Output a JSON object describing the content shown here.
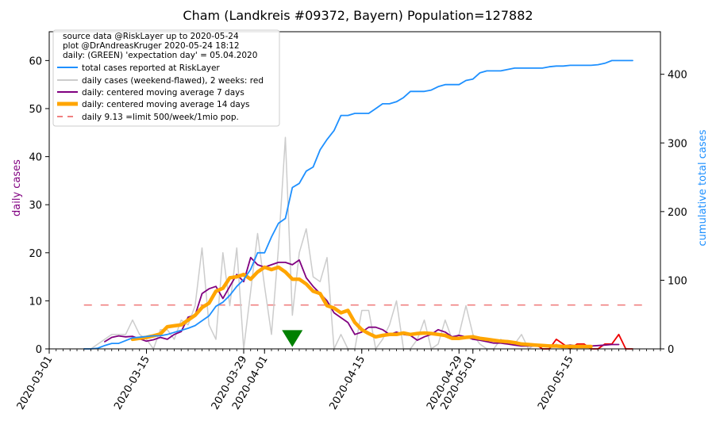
{
  "chart_data": {
    "type": "line",
    "title": "Cham (Landkreis #09372, Bayern) Population=127882",
    "ylabel_left": "daily cases",
    "ylabel_right": "cumulative total cases",
    "ylim_left": [
      0,
      66
    ],
    "ylim_right": [
      0,
      462
    ],
    "yticks_left": [
      0,
      10,
      20,
      30,
      40,
      50,
      60
    ],
    "yticks_right": [
      0,
      100,
      200,
      300,
      400
    ],
    "xlim_days": [
      0,
      88
    ],
    "x_origin_date": "2020-03-01",
    "xticks": [
      {
        "day": 0,
        "label": "2020-03-01"
      },
      {
        "day": 14,
        "label": "2020-03-15"
      },
      {
        "day": 28,
        "label": "2020-03-29"
      },
      {
        "day": 31,
        "label": "2020-04-01"
      },
      {
        "day": 45,
        "label": "2020-04-15"
      },
      {
        "day": 59,
        "label": "2020-04-29"
      },
      {
        "day": 61,
        "label": "2020-05-01"
      },
      {
        "day": 75,
        "label": "2020-05-15"
      }
    ],
    "info_text": [
      "source data @RiskLayer up to 2020-05-24",
      "plot @DrAndreasKruger 2020-05-24 18:12",
      "daily: (GREEN) 'expectation day' = 05.04.2020"
    ],
    "legend": [
      {
        "label": "total cases reported at RiskLayer",
        "style": "cumulative"
      },
      {
        "label": "daily cases (weekend-flawed), 2 weeks: red",
        "style": "daily"
      },
      {
        "label": "daily: centered moving average 7 days",
        "style": "ma7"
      },
      {
        "label": "daily: centered moving average 14 days",
        "style": "ma14"
      },
      {
        "label": "daily 9.13 =limit 500/week/1mio pop.",
        "style": "limit"
      }
    ],
    "colors": {
      "cumulative": "#1e90ff",
      "daily": "#cccccc",
      "daily_recent": "#ee0000",
      "ma7": "#800080",
      "ma14": "#ffa500",
      "limit": "#f08080",
      "marker": "#008000"
    },
    "limit_value": 9.13,
    "expectation_day": 35,
    "series": [
      {
        "name": "cumulative",
        "axis": "right",
        "x": [
          5,
          6,
          7,
          8,
          9,
          10,
          11,
          12,
          13,
          14,
          15,
          16,
          17,
          18,
          19,
          20,
          21,
          22,
          23,
          24,
          25,
          26,
          27,
          28,
          29,
          30,
          31,
          32,
          33,
          34,
          35,
          36,
          37,
          38,
          39,
          40,
          41,
          42,
          43,
          44,
          45,
          46,
          47,
          48,
          49,
          50,
          51,
          52,
          53,
          54,
          55,
          56,
          57,
          58,
          59,
          60,
          61,
          62,
          63,
          64,
          65,
          66,
          67,
          68,
          69,
          70,
          71,
          72,
          73,
          74,
          75,
          76,
          77,
          78,
          79,
          80,
          81,
          82,
          83,
          84
        ],
        "y": [
          0,
          0,
          1,
          5,
          8,
          8,
          12,
          16,
          17,
          18,
          19,
          19,
          21,
          24,
          27,
          30,
          34,
          41,
          48,
          62,
          68,
          78,
          91,
          101,
          116,
          140,
          140,
          163,
          183,
          190,
          235,
          241,
          259,
          265,
          290,
          305,
          318,
          340,
          340,
          343,
          343,
          343,
          350,
          357,
          357,
          360,
          366,
          375,
          375,
          375,
          377,
          382,
          385,
          385,
          385,
          391,
          393,
          402,
          405,
          405,
          405,
          407,
          409,
          409,
          409,
          409,
          409,
          411,
          412,
          412,
          413,
          413,
          413,
          413,
          414,
          416,
          420,
          420,
          420,
          420
        ]
      },
      {
        "name": "daily",
        "axis": "left",
        "x": [
          5,
          6,
          7,
          8,
          9,
          10,
          11,
          12,
          13,
          14,
          15,
          16,
          17,
          18,
          19,
          20,
          21,
          22,
          23,
          24,
          25,
          26,
          27,
          28,
          29,
          30,
          31,
          32,
          33,
          34,
          35,
          36,
          37,
          38,
          39,
          40,
          41,
          42,
          43,
          44,
          45,
          46,
          47,
          48,
          49,
          50,
          51,
          52,
          53,
          54,
          55,
          56,
          57,
          58,
          59,
          60,
          61,
          62,
          63,
          64,
          65,
          66,
          67,
          68,
          69,
          70,
          71,
          72,
          73,
          74
        ],
        "y": [
          0,
          0,
          1,
          2,
          3,
          3,
          3,
          6,
          3,
          2,
          0,
          4,
          4,
          2,
          6,
          5,
          9,
          21,
          5,
          2,
          20,
          9,
          21,
          0,
          12,
          24,
          13,
          3,
          21,
          44,
          7,
          20,
          25,
          15,
          14,
          19,
          0,
          3,
          0,
          0,
          8,
          8,
          0,
          2,
          5,
          10,
          0,
          0,
          2,
          6,
          0,
          1,
          6,
          2,
          3,
          9,
          3,
          1,
          0,
          0,
          2,
          1,
          1,
          3,
          0,
          1,
          0,
          0,
          1,
          0
        ]
      },
      {
        "name": "daily_recent",
        "axis": "left",
        "x": [
          70,
          71,
          72,
          73,
          74,
          75,
          76,
          77,
          78,
          79,
          80,
          81,
          82,
          83,
          84
        ],
        "y": [
          1,
          0,
          0,
          2,
          1,
          0,
          1,
          1,
          0,
          0,
          1,
          1,
          3,
          0,
          0
        ]
      },
      {
        "name": "ma7",
        "axis": "left",
        "x": [
          8,
          9,
          10,
          11,
          12,
          13,
          14,
          15,
          16,
          17,
          18,
          19,
          20,
          21,
          22,
          23,
          24,
          25,
          26,
          27,
          28,
          29,
          30,
          31,
          32,
          33,
          34,
          35,
          36,
          37,
          38,
          39,
          40,
          41,
          42,
          43,
          44,
          45,
          46,
          47,
          48,
          49,
          50,
          51,
          52,
          53,
          54,
          55,
          56,
          57,
          58,
          59,
          60,
          61,
          62,
          63,
          64,
          65,
          66,
          67,
          68,
          69,
          70,
          71,
          72,
          73,
          74,
          75,
          76,
          77,
          78,
          79,
          80,
          81,
          82
        ],
        "y": [
          1.5,
          2.4,
          2.7,
          2.5,
          2.6,
          2.1,
          1.6,
          1.9,
          2.4,
          2.0,
          3.0,
          3.6,
          6.6,
          7.0,
          11.5,
          12.5,
          13.0,
          10.5,
          13.0,
          15.5,
          14.0,
          19.0,
          17.5,
          17.0,
          17.5,
          18.0,
          18.0,
          17.5,
          18.5,
          14.8,
          13.0,
          11.5,
          10.0,
          7.5,
          6.5,
          5.5,
          3.0,
          3.5,
          4.5,
          4.5,
          4.0,
          3.0,
          3.5,
          3.0,
          2.8,
          1.8,
          2.5,
          3.0,
          4.0,
          3.5,
          2.5,
          2.8,
          2.5,
          2.0,
          1.8,
          1.5,
          1.2,
          1.2,
          1.0,
          0.8,
          0.6,
          0.6,
          0.6,
          0.5,
          0.6,
          0.6,
          0.6,
          0.8,
          0.6,
          0.5,
          0.6,
          0.7,
          0.8,
          0.9,
          0.9
        ]
      },
      {
        "name": "ma14",
        "axis": "left",
        "x": [
          12,
          13,
          14,
          15,
          16,
          17,
          18,
          19,
          20,
          21,
          22,
          23,
          24,
          25,
          26,
          27,
          28,
          29,
          30,
          31,
          32,
          33,
          34,
          35,
          36,
          37,
          38,
          39,
          40,
          41,
          42,
          43,
          44,
          45,
          46,
          47,
          48,
          49,
          50,
          51,
          52,
          53,
          54,
          55,
          56,
          57,
          58,
          59,
          60,
          61,
          62,
          63,
          64,
          65,
          66,
          67,
          68,
          69,
          70,
          71,
          72,
          73,
          74,
          75,
          76,
          77,
          78
        ],
        "y": [
          2.0,
          2.2,
          2.4,
          2.7,
          3.1,
          4.6,
          4.8,
          5.0,
          6.0,
          7.0,
          8.6,
          9.5,
          12.0,
          12.6,
          14.8,
          15.0,
          15.5,
          14.5,
          16.0,
          17.0,
          16.5,
          17.0,
          16.0,
          14.5,
          14.5,
          13.5,
          12.0,
          11.5,
          9.0,
          8.5,
          7.5,
          8.0,
          5.5,
          4.0,
          3.2,
          2.5,
          2.8,
          3.0,
          3.0,
          3.3,
          3.0,
          3.2,
          3.3,
          3.2,
          3.0,
          2.8,
          2.2,
          2.2,
          2.4,
          2.5,
          2.2,
          2.0,
          1.8,
          1.6,
          1.5,
          1.3,
          1.0,
          0.9,
          0.8,
          0.7,
          0.6,
          0.6,
          0.5,
          0.5,
          0.5,
          0.5,
          0.5
        ]
      }
    ]
  }
}
